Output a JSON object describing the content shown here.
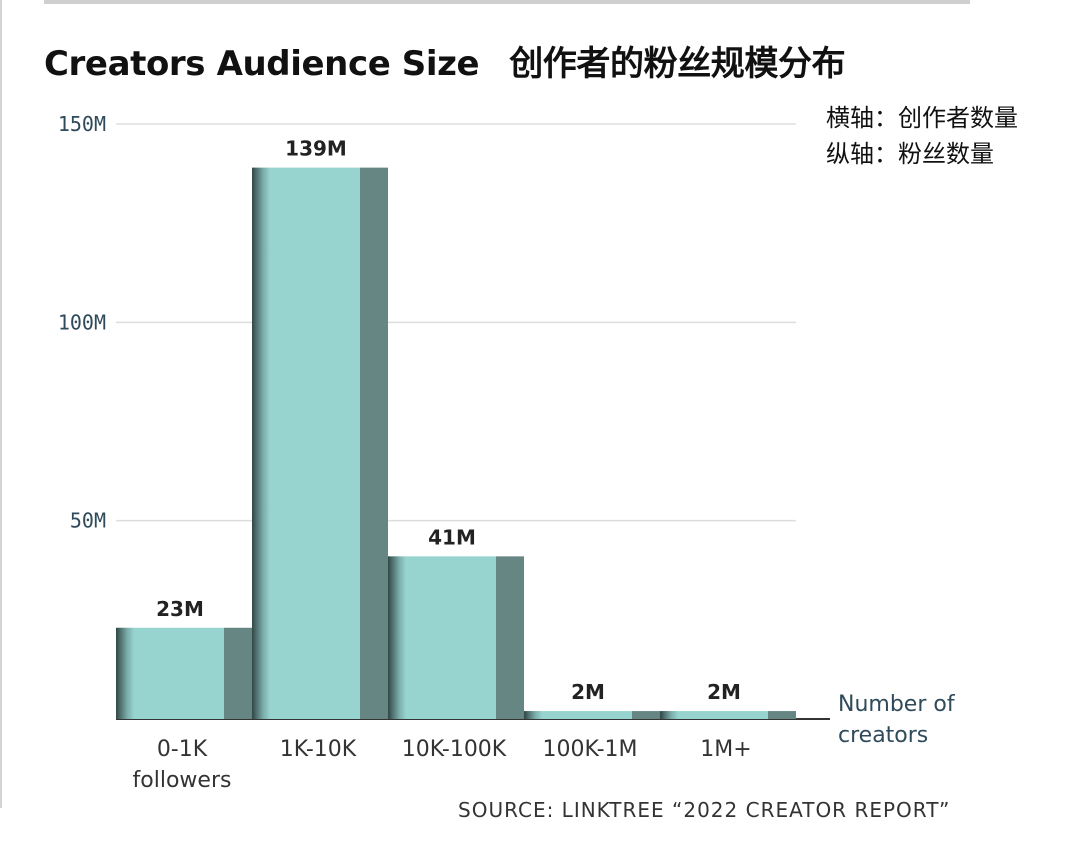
{
  "header": {
    "title_en": "Creators Audience Size",
    "title_cn": "创作者的粉丝规模分布"
  },
  "axis_note": {
    "x_line": "横轴：创作者数量",
    "y_line": "纵轴：粉丝数量"
  },
  "source": "SOURCE: LINKTREE “2022 CREATOR REPORT”",
  "colors": {
    "bar_face": "#97d3cf",
    "bar_side": "#658683",
    "bar_shadow": "#1f2e2d",
    "grid": "#dddddd",
    "baseline": "#333333"
  },
  "chart_data": {
    "type": "bar",
    "title": "Creators Audience Size",
    "categories": [
      "0-1K\nfollowers",
      "1K-10K",
      "10K-100K",
      "100K-1M",
      "1M+"
    ],
    "values": [
      23,
      139,
      41,
      2,
      2
    ],
    "value_labels": [
      "23M",
      "139M",
      "41M",
      "2M",
      "2M"
    ],
    "ylim": [
      0,
      150
    ],
    "yticks": [
      50,
      100,
      150
    ],
    "ytick_labels": [
      "50M",
      "100M",
      "150M"
    ],
    "xlabel": "Number of creators",
    "ylabel": "",
    "grid": true,
    "legend": "none"
  }
}
